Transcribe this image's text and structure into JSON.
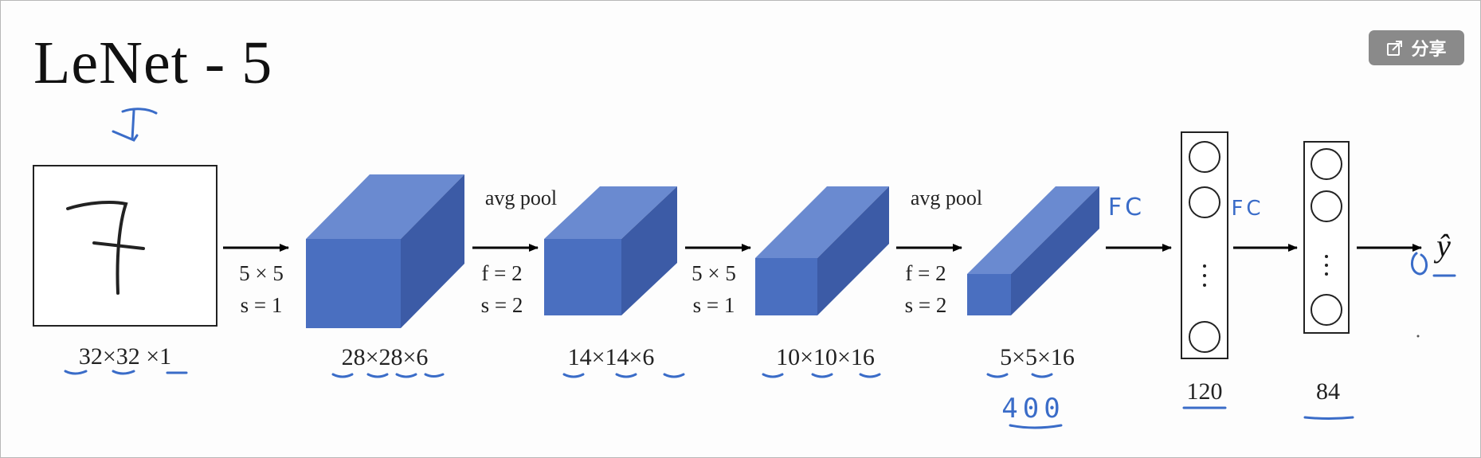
{
  "title": "LeNet - 5",
  "share_button": {
    "label": "分享",
    "icon": "share-icon"
  },
  "colors": {
    "volume_front": "#4a6fc0",
    "volume_top": "#6a8ad0",
    "volume_side": "#3c5ba6",
    "handwriting": "#3a6cc8"
  },
  "input": {
    "digit": "7",
    "size_label": "32×32 ×1"
  },
  "convs": [
    {
      "label_top": "5 × 5",
      "label_bottom": "s = 1"
    },
    {
      "label_top": "5 × 5",
      "label_bottom": "s = 1"
    }
  ],
  "pools": [
    {
      "op": "avg pool",
      "label_top": "f = 2",
      "label_bottom": "s = 2"
    },
    {
      "op": "avg pool",
      "label_top": "f = 2",
      "label_bottom": "s = 2"
    }
  ],
  "volumes": [
    {
      "size_label": "28×28×6"
    },
    {
      "size_label": "14×14×6"
    },
    {
      "size_label": "10×10×16"
    },
    {
      "size_label": "5×5×16"
    }
  ],
  "flatten_annotation": "400",
  "fc_layers": [
    {
      "size_label": "120",
      "annotation": "FC"
    },
    {
      "size_label": "84",
      "annotation": "FC"
    }
  ],
  "output_label": "ŷ"
}
